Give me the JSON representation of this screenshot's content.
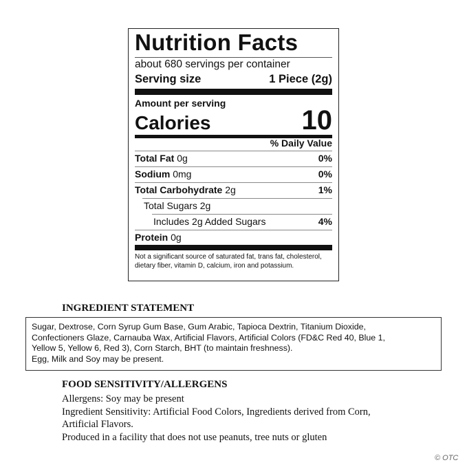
{
  "label": {
    "title": "Nutrition Facts",
    "servings": "about 680 servings per container",
    "serving_size_label": "Serving size",
    "serving_size_value": "1 Piece (2g)",
    "amount_per_serving": "Amount per serving",
    "calories_label": "Calories",
    "calories_value": 10,
    "dv_header": "% Daily Value",
    "nutrients": [
      {
        "name": "Total Fat",
        "amount": "0g",
        "dv": "0%"
      },
      {
        "name": "Sodium",
        "amount": "0mg",
        "dv": "0%"
      },
      {
        "name": "Total Carbohydrate",
        "amount": "2g",
        "dv": "1%"
      },
      {
        "name": "Total Sugars",
        "amount": "2g"
      },
      {
        "name": "Includes 2g Added Sugars",
        "dv": "4%"
      },
      {
        "name": "Protein",
        "amount": "0g"
      }
    ],
    "footnote": "Not a significant source of saturated fat, trans fat, cholesterol, dietary fiber, vitamin D, calcium, iron and potassium."
  },
  "ingredients": {
    "heading": "INGREDIENT STATEMENT",
    "lines": [
      "Sugar, Dextrose, Corn Syrup  Gum Base, Gum Arabic, Tapioca Dextrin, Titanium Dioxide,",
      "Confectioners Glaze, Carnauba Wax, Artificial Flavors, Artificial Colors (FD&C Red 40, Blue 1,",
      "Yellow 5, Yellow 6, Red 3), Corn Starch, BHT (to maintain freshness).",
      "Egg, Milk and Soy may be present."
    ]
  },
  "allergens": {
    "heading": "FOOD SENSITIVITY/ALLERGENS",
    "lines": [
      "Allergens: Soy may be present",
      "Ingredient Sensitivity:  Artificial Food Colors, Ingredients derived from Corn,",
      "Artificial Flavors.",
      "Produced in a facility that does not use peanuts, tree nuts or gluten"
    ]
  },
  "watermark": "© OTC"
}
